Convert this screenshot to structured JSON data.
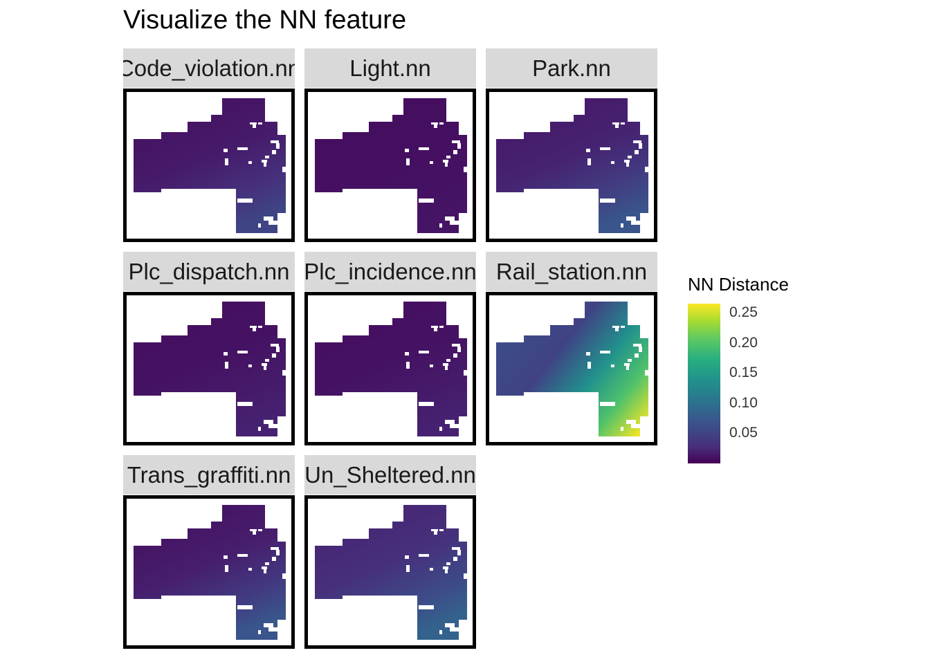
{
  "chart_data": {
    "type": "heatmap",
    "title": "Visualize the NN feature",
    "facets": [
      {
        "label": "Code_violation.nn",
        "low": 0.01,
        "high": 0.055
      },
      {
        "label": "Light.nn",
        "low": 0.01,
        "high": 0.015
      },
      {
        "label": "Park.nn",
        "low": 0.015,
        "high": 0.07
      },
      {
        "label": "Plc_dispatch.nn",
        "low": 0.01,
        "high": 0.025
      },
      {
        "label": "Plc_incidence.nn",
        "low": 0.01,
        "high": 0.025
      },
      {
        "label": "Rail_station.nn",
        "low": 0.03,
        "high": 0.26
      },
      {
        "label": "Trans_graffiti.nn",
        "low": 0.01,
        "high": 0.07
      },
      {
        "label": "Un_Sheltered.nn",
        "low": 0.025,
        "high": 0.085
      }
    ],
    "legend": {
      "title": "NN Distance",
      "placement": "right",
      "ticks": [
        0.25,
        0.2,
        0.15,
        0.1,
        0.05
      ],
      "range": [
        0.0,
        0.265
      ],
      "colormap": "viridis"
    }
  }
}
